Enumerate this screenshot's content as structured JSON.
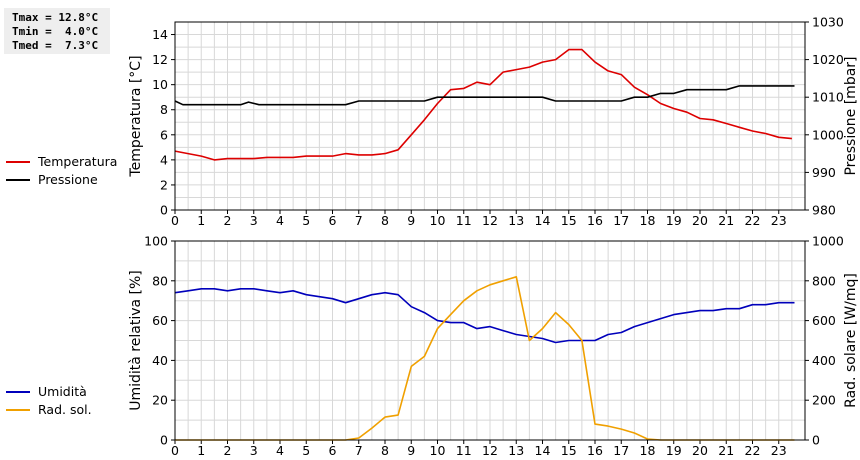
{
  "summary": {
    "lines": [
      "Tmax = 12.8°C",
      "Tmin =  4.0°C",
      "Tmed =  7.3°C"
    ]
  },
  "colors": {
    "temperatura": "#dd0000",
    "pressione": "#000000",
    "umidita": "#0000bb",
    "radsol": "#f0a000",
    "grid": "#d8d8d8"
  },
  "legend": {
    "top": [
      {
        "label": "Temperatura",
        "color": "#dd0000"
      },
      {
        "label": "Pressione",
        "color": "#000000"
      }
    ],
    "bottom": [
      {
        "label": "Umidità",
        "color": "#0000bb"
      },
      {
        "label": "Rad. sol.",
        "color": "#f0a000"
      }
    ]
  },
  "chart_data": [
    {
      "type": "line",
      "grid": true,
      "xlim": [
        0,
        24
      ],
      "x_ticks": [
        0,
        1,
        2,
        3,
        4,
        5,
        6,
        7,
        8,
        9,
        10,
        11,
        12,
        13,
        14,
        15,
        16,
        17,
        18,
        19,
        20,
        21,
        22,
        23
      ],
      "left_axis": {
        "label": "Temperatura [°C]",
        "range": [
          0,
          15
        ],
        "ticks": [
          0,
          2,
          4,
          6,
          8,
          10,
          12,
          14
        ]
      },
      "right_axis": {
        "label": "Pressione [mbar]",
        "range": [
          980,
          1030
        ],
        "ticks": [
          980,
          990,
          1000,
          1010,
          1020,
          1030
        ]
      },
      "series": [
        {
          "name": "Temperatura",
          "axis": "left",
          "color": "#dd0000",
          "points": [
            [
              0,
              4.7
            ],
            [
              0.5,
              4.5
            ],
            [
              1,
              4.3
            ],
            [
              1.5,
              4.0
            ],
            [
              2,
              4.1
            ],
            [
              2.5,
              4.1
            ],
            [
              3,
              4.1
            ],
            [
              3.5,
              4.2
            ],
            [
              4,
              4.2
            ],
            [
              4.5,
              4.2
            ],
            [
              5,
              4.3
            ],
            [
              5.5,
              4.3
            ],
            [
              6,
              4.3
            ],
            [
              6.5,
              4.5
            ],
            [
              7,
              4.4
            ],
            [
              7.5,
              4.4
            ],
            [
              8,
              4.5
            ],
            [
              8.5,
              4.8
            ],
            [
              9,
              6.0
            ],
            [
              9.5,
              7.2
            ],
            [
              10,
              8.5
            ],
            [
              10.5,
              9.6
            ],
            [
              11,
              9.7
            ],
            [
              11.5,
              10.2
            ],
            [
              12,
              10.0
            ],
            [
              12.5,
              11.0
            ],
            [
              13,
              11.2
            ],
            [
              13.5,
              11.4
            ],
            [
              14,
              11.8
            ],
            [
              14.5,
              12.0
            ],
            [
              15,
              12.8
            ],
            [
              15.5,
              12.8
            ],
            [
              16,
              11.8
            ],
            [
              16.5,
              11.1
            ],
            [
              17,
              10.8
            ],
            [
              17.5,
              9.8
            ],
            [
              18,
              9.2
            ],
            [
              18.5,
              8.5
            ],
            [
              19,
              8.1
            ],
            [
              19.5,
              7.8
            ],
            [
              20,
              7.3
            ],
            [
              20.5,
              7.2
            ],
            [
              21,
              6.9
            ],
            [
              21.5,
              6.6
            ],
            [
              22,
              6.3
            ],
            [
              22.5,
              6.1
            ],
            [
              23,
              5.8
            ],
            [
              23.5,
              5.7
            ]
          ]
        },
        {
          "name": "Pressione",
          "axis": "right",
          "color": "#000000",
          "points": [
            [
              0,
              1009
            ],
            [
              0.3,
              1008
            ],
            [
              1,
              1008
            ],
            [
              1.5,
              1008
            ],
            [
              2,
              1008
            ],
            [
              2.5,
              1008
            ],
            [
              2.8,
              1008.7
            ],
            [
              3.2,
              1008
            ],
            [
              4,
              1008
            ],
            [
              5,
              1008
            ],
            [
              6,
              1008
            ],
            [
              6.5,
              1008
            ],
            [
              7,
              1009
            ],
            [
              8,
              1009
            ],
            [
              9,
              1009
            ],
            [
              9.5,
              1009
            ],
            [
              10,
              1010
            ],
            [
              11,
              1010
            ],
            [
              12,
              1010
            ],
            [
              13,
              1010
            ],
            [
              14,
              1010
            ],
            [
              14.5,
              1009
            ],
            [
              15,
              1009
            ],
            [
              16,
              1009
            ],
            [
              17,
              1009
            ],
            [
              17.5,
              1010
            ],
            [
              18,
              1010
            ],
            [
              18.5,
              1011
            ],
            [
              19,
              1011
            ],
            [
              19.5,
              1012
            ],
            [
              20,
              1012
            ],
            [
              21,
              1012
            ],
            [
              21.5,
              1013
            ],
            [
              22,
              1013
            ],
            [
              23,
              1013
            ],
            [
              23.6,
              1013
            ]
          ]
        }
      ]
    },
    {
      "type": "line",
      "grid": true,
      "xlim": [
        0,
        24
      ],
      "x_ticks": [
        0,
        1,
        2,
        3,
        4,
        5,
        6,
        7,
        8,
        9,
        10,
        11,
        12,
        13,
        14,
        15,
        16,
        17,
        18,
        19,
        20,
        21,
        22,
        23
      ],
      "left_axis": {
        "label": "Umidità relativa [%]",
        "range": [
          0,
          100
        ],
        "ticks": [
          0,
          20,
          40,
          60,
          80,
          100
        ]
      },
      "right_axis": {
        "label": "Rad. solare [W/mq]",
        "range": [
          0,
          1000
        ],
        "ticks": [
          0,
          200,
          400,
          600,
          800,
          1000
        ]
      },
      "series": [
        {
          "name": "Umidità",
          "axis": "left",
          "color": "#0000bb",
          "points": [
            [
              0,
              74
            ],
            [
              0.5,
              75
            ],
            [
              1,
              76
            ],
            [
              1.5,
              76
            ],
            [
              2,
              75
            ],
            [
              2.5,
              76
            ],
            [
              3,
              76
            ],
            [
              3.5,
              75
            ],
            [
              4,
              74
            ],
            [
              4.5,
              75
            ],
            [
              5,
              73
            ],
            [
              5.5,
              72
            ],
            [
              6,
              71
            ],
            [
              6.5,
              69
            ],
            [
              7,
              71
            ],
            [
              7.5,
              73
            ],
            [
              8,
              74
            ],
            [
              8.5,
              73
            ],
            [
              9,
              67
            ],
            [
              9.5,
              64
            ],
            [
              10,
              60
            ],
            [
              10.5,
              59
            ],
            [
              11,
              59
            ],
            [
              11.5,
              56
            ],
            [
              12,
              57
            ],
            [
              12.5,
              55
            ],
            [
              13,
              53
            ],
            [
              13.5,
              52
            ],
            [
              14,
              51
            ],
            [
              14.5,
              49
            ],
            [
              15,
              50
            ],
            [
              15.5,
              50
            ],
            [
              16,
              50
            ],
            [
              16.5,
              53
            ],
            [
              17,
              54
            ],
            [
              17.5,
              57
            ],
            [
              18,
              59
            ],
            [
              18.5,
              61
            ],
            [
              19,
              63
            ],
            [
              19.5,
              64
            ],
            [
              20,
              65
            ],
            [
              20.5,
              65
            ],
            [
              21,
              66
            ],
            [
              21.5,
              66
            ],
            [
              22,
              68
            ],
            [
              22.5,
              68
            ],
            [
              23,
              69
            ],
            [
              23.6,
              69
            ]
          ]
        },
        {
          "name": "Rad. sol.",
          "axis": "right",
          "color": "#f0a000",
          "points": [
            [
              0,
              0
            ],
            [
              6.5,
              0
            ],
            [
              7,
              10
            ],
            [
              7.5,
              60
            ],
            [
              8,
              115
            ],
            [
              8.5,
              125
            ],
            [
              9,
              370
            ],
            [
              9.5,
              420
            ],
            [
              10,
              560
            ],
            [
              10.5,
              630
            ],
            [
              11,
              700
            ],
            [
              11.5,
              750
            ],
            [
              12,
              780
            ],
            [
              12.5,
              800
            ],
            [
              13,
              820
            ],
            [
              13.5,
              500
            ],
            [
              14,
              560
            ],
            [
              14.5,
              640
            ],
            [
              15,
              580
            ],
            [
              15.5,
              500
            ],
            [
              16,
              80
            ],
            [
              16.5,
              70
            ],
            [
              17,
              55
            ],
            [
              17.5,
              35
            ],
            [
              18,
              5
            ],
            [
              18.5,
              0
            ],
            [
              23.6,
              0
            ]
          ]
        }
      ]
    }
  ]
}
